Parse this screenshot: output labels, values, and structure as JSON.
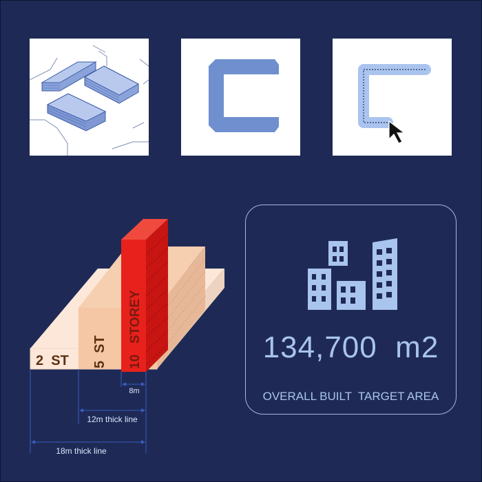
{
  "colors": {
    "background": "#1e2a55",
    "accent_blue": "#6f8fcf",
    "light_blue": "#a9c4ee",
    "tower_red": "#e8211c",
    "mid_tan": "#f5c7a5",
    "low_cream": "#fde7d9"
  },
  "tiles": [
    {
      "icon": "isometric-buildings-icon"
    },
    {
      "icon": "c-shape-icon"
    },
    {
      "icon": "c-path-cursor-icon"
    }
  ],
  "massing": {
    "low_label": "2  ST",
    "mid_label": "5  ST",
    "tower_label": "10   STOREY",
    "dim_8m": "8m",
    "dim_12m": "12m thick line",
    "dim_18m": "18m thick line"
  },
  "target": {
    "value": "134,700  m2",
    "caption": "OVERALL BUILT  TARGET AREA",
    "icon": "city-buildings-icon"
  }
}
